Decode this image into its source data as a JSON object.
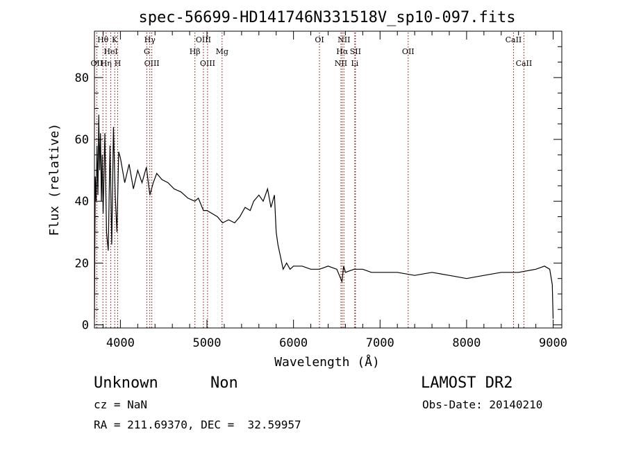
{
  "chart_data": {
    "type": "line",
    "title": "spec-56699-HD141746N331518V_sp10-097.fits",
    "xlabel": "Wavelength (Å)",
    "ylabel": "Flux (relative)",
    "xlim": [
      3700,
      9100
    ],
    "ylim": [
      -1,
      95
    ],
    "xticks": [
      4000,
      5000,
      6000,
      7000,
      8000,
      9000
    ],
    "yticks": [
      0,
      20,
      40,
      60,
      80
    ],
    "grid": false,
    "line_color": "#000000",
    "marker_color": "#8b0000",
    "series": [
      {
        "x": [
          3700,
          3710,
          3720,
          3730,
          3740,
          3750,
          3760,
          3770,
          3780,
          3790,
          3800,
          3820,
          3840,
          3860,
          3880,
          3900,
          3920,
          3940,
          3960,
          3980,
          4000,
          4050,
          4100,
          4150,
          4200,
          4250,
          4300,
          4340,
          4380,
          4420,
          4480,
          4550,
          4620,
          4700,
          4780,
          4860,
          4900,
          4960,
          5000,
          5060,
          5120,
          5180,
          5250,
          5320,
          5380,
          5440,
          5500,
          5540,
          5600,
          5650,
          5700,
          5740,
          5780,
          5800,
          5820,
          5850,
          5880,
          5920,
          5960,
          6000,
          6100,
          6200,
          6300,
          6400,
          6500,
          6560,
          6580,
          6600,
          6700,
          6800,
          6900,
          7000,
          7200,
          7400,
          7600,
          7800,
          8000,
          8200,
          8400,
          8600,
          8800,
          8900,
          8960,
          8990,
          9000
        ],
        "y": [
          2,
          48,
          40,
          58,
          42,
          68,
          50,
          62,
          40,
          55,
          36,
          62,
          30,
          24,
          58,
          26,
          64,
          42,
          30,
          56,
          54,
          46,
          52,
          44,
          50,
          46,
          51,
          42,
          46,
          49,
          47,
          46,
          44,
          43,
          41,
          40,
          41,
          37,
          37,
          36,
          35,
          33,
          34,
          33,
          35,
          38,
          37,
          40,
          42,
          40,
          44,
          38,
          42,
          30,
          26,
          22,
          18,
          20,
          18,
          19,
          19,
          18,
          18,
          19,
          18,
          14,
          19,
          17,
          18,
          18,
          17,
          17,
          17,
          16,
          17,
          16,
          15,
          16,
          17,
          17,
          18,
          19,
          18,
          13,
          2
        ]
      }
    ],
    "lines": [
      {
        "label": "Hθ",
        "x": 3798,
        "row": 1
      },
      {
        "label": "OII",
        "x": 3727,
        "row": 3
      },
      {
        "label": "Hη",
        "x": 3835,
        "row": 3
      },
      {
        "label": "HeI",
        "x": 3889,
        "row": 2
      },
      {
        "label": "K",
        "x": 3934,
        "row": 1
      },
      {
        "label": "H",
        "x": 3969,
        "row": 3
      },
      {
        "label": "Hγ",
        "x": 4340,
        "row": 1
      },
      {
        "label": "G",
        "x": 4305,
        "row": 2
      },
      {
        "label": "OIII",
        "x": 4363,
        "row": 3
      },
      {
        "label": "Hβ",
        "x": 4861,
        "row": 2
      },
      {
        "label": "OIII",
        "x": 4959,
        "row": 1
      },
      {
        "label": "OIII",
        "x": 5007,
        "row": 3
      },
      {
        "label": "Mg",
        "x": 5175,
        "row": 2
      },
      {
        "label": "OI",
        "x": 6300,
        "row": 1
      },
      {
        "label": "NII",
        "x": 6583,
        "row": 1
      },
      {
        "label": "Hα",
        "x": 6563,
        "row": 2
      },
      {
        "label": "SII",
        "x": 6716,
        "row": 2
      },
      {
        "label": "NII",
        "x": 6548,
        "row": 3
      },
      {
        "label": "Li",
        "x": 6708,
        "row": 3
      },
      {
        "label": "OII",
        "x": 7325,
        "row": 2
      },
      {
        "label": "CaII",
        "x": 8542,
        "row": 1
      },
      {
        "label": "CaII",
        "x": 8662,
        "row": 3
      }
    ]
  },
  "info": {
    "class": "Unknown",
    "subclass": "Non",
    "survey": "LAMOST DR2",
    "cz": "cz = NaN",
    "obs_date": "Obs-Date: 20140210",
    "coords": "RA = 211.69370, DEC =  32.59957"
  }
}
